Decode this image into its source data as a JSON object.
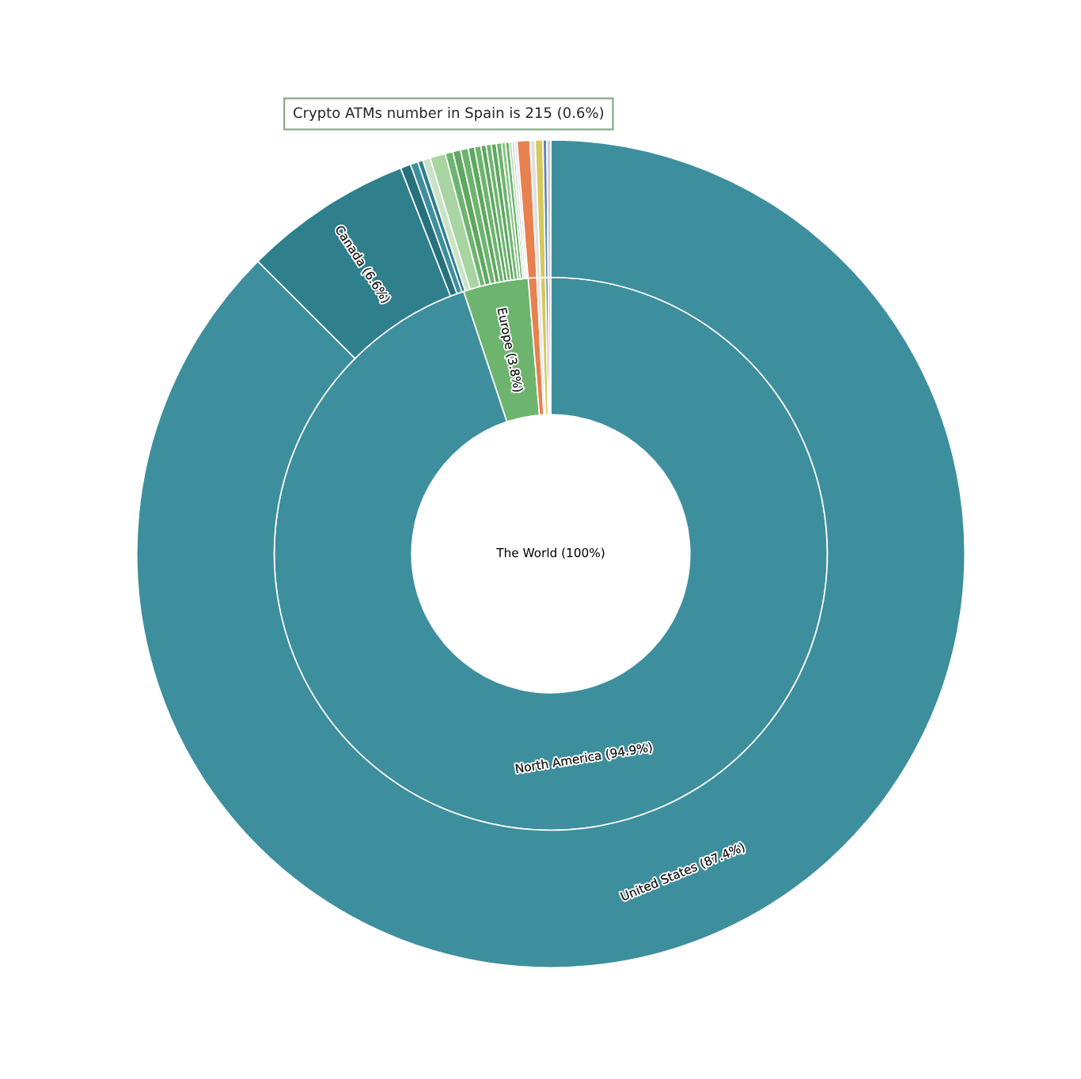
{
  "chart_data": {
    "type": "donut",
    "series": [
      {
        "value_labels": [
          "North America (94.9%)",
          "Europe (3.8%)",
          null,
          null,
          null,
          null,
          null
        ],
        "values": [
          94.9,
          3.8,
          0.5,
          0.2,
          0.3,
          0.15,
          0.15
        ],
        "colors": [
          "#3d8f9e",
          "#6db56e",
          "#e8804f",
          "#e0e0e0",
          "#d6c85a",
          "#5b80c4",
          "#cccccc"
        ]
      },
      {
        "value_labels": [
          "United States (87.4%)",
          "Canada (6.6%)",
          null,
          null,
          null,
          null,
          null,
          null,
          null,
          null,
          null,
          null,
          null,
          null,
          null,
          null,
          null,
          null,
          null,
          null,
          null,
          null,
          null,
          null,
          null,
          null
        ],
        "values": [
          87.4,
          6.6,
          0.4,
          0.3,
          0.2,
          0.3,
          0.6,
          0.3,
          0.3,
          0.3,
          0.25,
          0.25,
          0.2,
          0.2,
          0.2,
          0.2,
          0.15,
          0.15,
          0.1,
          0.1,
          0.1,
          0.5,
          0.2,
          0.3,
          0.15,
          0.15
        ],
        "colors": [
          "#3d8f9e",
          "#2f7f8d",
          "#27707e",
          "#3d8f9e",
          "#2f7f8d",
          "#c9e3c4",
          "#a8d5a2",
          "#6db56e",
          "#5ea85f",
          "#6db56e",
          "#5ea85f",
          "#6db56e",
          "#5ea85f",
          "#6db56e",
          "#5ea85f",
          "#6db56e",
          "#8cc48a",
          "#6db56e",
          "#a8d5a2",
          "#d0d0d0",
          "#e0e0e0",
          "#e8804f",
          "#e0e0e0",
          "#d6c85a",
          "#5b80c4",
          "#cccccc"
        ]
      }
    ],
    "annotations": [
      "The World (100%)",
      "Crypto ATMs number in Spain is 215 (0.6%)"
    ]
  }
}
